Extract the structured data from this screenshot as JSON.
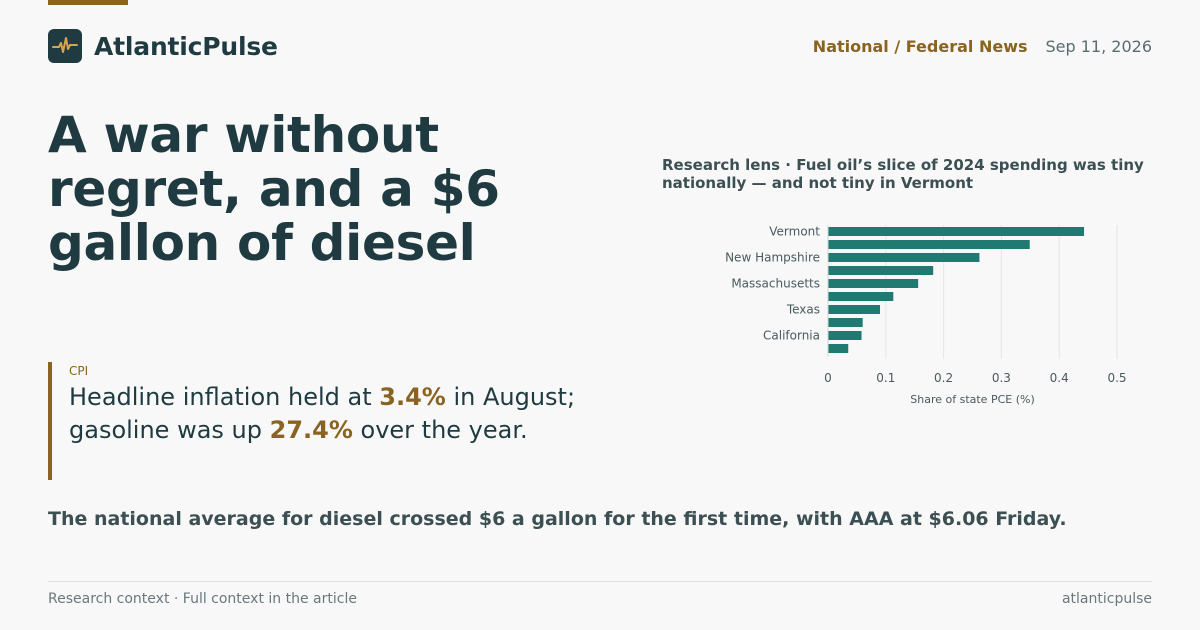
{
  "brand": {
    "name": "AtlanticPulse",
    "logo_icon": "pulse-icon"
  },
  "header": {
    "section": "National / Federal News",
    "date": "Sep 11, 2026"
  },
  "headline": "A war without regret, and a $6 gallon of diesel",
  "stat": {
    "tag": "CPI",
    "prefix": "Headline inflation held at ",
    "value1": "3.4%",
    "middle": " in August; gasoline was up ",
    "value2": "27.4%",
    "suffix": " over the year."
  },
  "dek": "The national average for diesel crossed $6 a gallon for the first time, with AAA at $6.06 Friday.",
  "footer": {
    "left": "Research context · Full context in the article",
    "right": "atlanticpulse"
  },
  "colors": {
    "accent": "#8a6320",
    "bar": "#217a72",
    "ink": "#1f3a40"
  },
  "chart_data": {
    "type": "bar",
    "orientation": "horizontal",
    "title": "Research lens · Fuel oil’s slice of 2024 spending was tiny nationally — and not tiny in Vermont",
    "xlabel": "Share of state PCE (%)",
    "xlim": [
      0,
      0.5
    ],
    "xticks": [
      "0",
      "0.1",
      "0.2",
      "0.3",
      "0.4",
      "0.5"
    ],
    "xtick_values": [
      0,
      0.1,
      0.2,
      0.3,
      0.4,
      0.5
    ],
    "grid": true,
    "bars": [
      {
        "label": "Vermont",
        "value": 0.443
      },
      {
        "label": "",
        "value": 0.349
      },
      {
        "label": "New Hampshire",
        "value": 0.262
      },
      {
        "label": "",
        "value": 0.182
      },
      {
        "label": "Massachusetts",
        "value": 0.156
      },
      {
        "label": "",
        "value": 0.113
      },
      {
        "label": "Texas",
        "value": 0.09
      },
      {
        "label": "",
        "value": 0.06
      },
      {
        "label": "California",
        "value": 0.058
      },
      {
        "label": "",
        "value": 0.035
      }
    ]
  }
}
